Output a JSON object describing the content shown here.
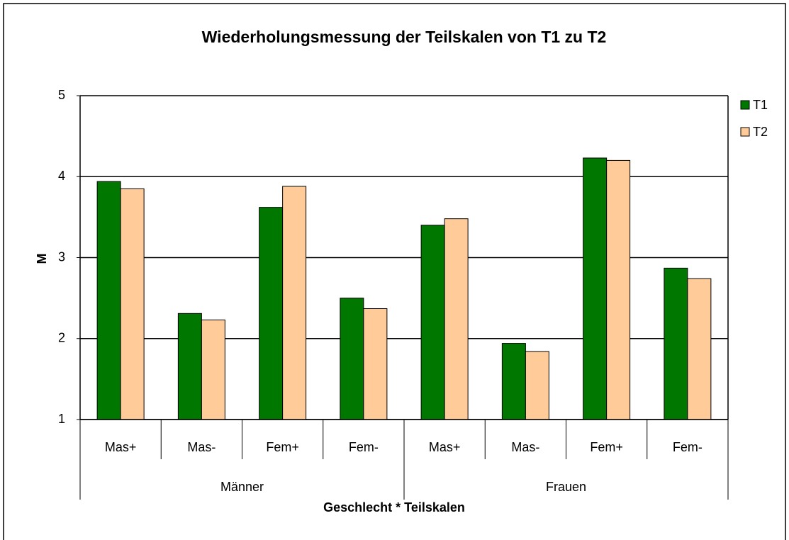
{
  "chart_data": {
    "type": "bar",
    "title": "Wiederholungsmessung der Teilskalen von T1 zu T2",
    "xlabel": "Geschlecht * Teilskalen",
    "ylabel": "M",
    "categories": [
      "Mas+",
      "Mas-",
      "Fem+",
      "Fem-",
      "Mas+",
      "Mas-",
      "Fem+",
      "Fem-"
    ],
    "groups": [
      {
        "label": "Männer",
        "size": 4
      },
      {
        "label": "Frauen",
        "size": 4
      }
    ],
    "series": [
      {
        "name": "T1",
        "color": "#007800",
        "values": [
          3.94,
          2.31,
          3.62,
          2.5,
          3.4,
          1.94,
          4.23,
          2.87
        ]
      },
      {
        "name": "T2",
        "color": "#ffcc99",
        "values": [
          3.85,
          2.23,
          3.88,
          2.37,
          3.48,
          1.84,
          4.2,
          2.74
        ]
      }
    ],
    "ylim": [
      1,
      5
    ],
    "yticks": [
      1,
      2,
      3,
      4,
      5
    ],
    "grid": true,
    "legend": "right"
  }
}
